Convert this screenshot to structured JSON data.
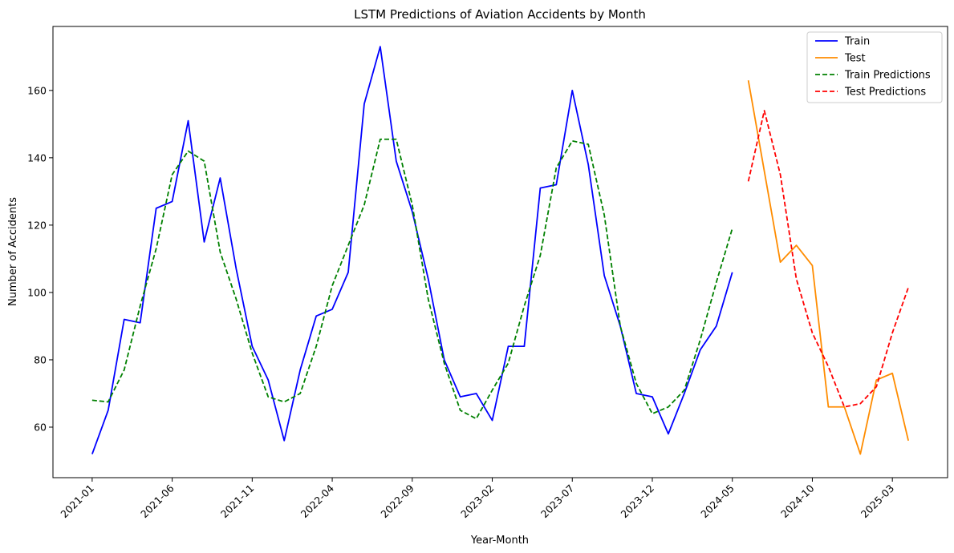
{
  "chart_data": {
    "type": "line",
    "title": "LSTM Predictions of Aviation Accidents by Month",
    "xlabel": "Year-Month",
    "ylabel": "Number of Accidents",
    "x_months": [
      "2021-01",
      "2021-02",
      "2021-03",
      "2021-04",
      "2021-05",
      "2021-06",
      "2021-07",
      "2021-08",
      "2021-09",
      "2021-10",
      "2021-11",
      "2021-12",
      "2022-01",
      "2022-02",
      "2022-03",
      "2022-04",
      "2022-05",
      "2022-06",
      "2022-07",
      "2022-08",
      "2022-09",
      "2022-10",
      "2022-11",
      "2022-12",
      "2023-01",
      "2023-02",
      "2023-03",
      "2023-04",
      "2023-05",
      "2023-06",
      "2023-07",
      "2023-08",
      "2023-09",
      "2023-10",
      "2023-11",
      "2023-12",
      "2024-01",
      "2024-02",
      "2024-03",
      "2024-04",
      "2024-05",
      "2024-06",
      "2024-07",
      "2024-08",
      "2024-09",
      "2024-10",
      "2024-11",
      "2024-12",
      "2025-01",
      "2025-02",
      "2025-03",
      "2025-04"
    ],
    "x_ticks": [
      "2021-01",
      "2021-06",
      "2021-11",
      "2022-04",
      "2022-09",
      "2023-02",
      "2023-07",
      "2023-12",
      "2024-05",
      "2024-10",
      "2025-03"
    ],
    "y_ticks": [
      60,
      80,
      100,
      120,
      140,
      160
    ],
    "ylim": [
      45,
      179
    ],
    "legend_position": "top-right",
    "series": [
      {
        "name": "Train",
        "color": "#0000ff",
        "dash": "solid",
        "x": [
          "2021-01",
          "2021-02",
          "2021-03",
          "2021-04",
          "2021-05",
          "2021-06",
          "2021-07",
          "2021-08",
          "2021-09",
          "2021-10",
          "2021-11",
          "2021-12",
          "2022-01",
          "2022-02",
          "2022-03",
          "2022-04",
          "2022-05",
          "2022-06",
          "2022-07",
          "2022-08",
          "2022-09",
          "2022-10",
          "2022-11",
          "2022-12",
          "2023-01",
          "2023-02",
          "2023-03",
          "2023-04",
          "2023-05",
          "2023-06",
          "2023-07",
          "2023-08",
          "2023-09",
          "2023-10",
          "2023-11",
          "2023-12",
          "2024-01",
          "2024-02",
          "2024-03",
          "2024-04",
          "2024-05"
        ],
        "values": [
          52,
          65,
          92,
          91,
          125,
          127,
          151,
          115,
          134,
          107,
          84,
          74,
          56,
          77,
          93,
          95,
          106,
          156,
          173,
          139,
          124,
          104,
          80,
          69,
          70,
          62,
          84,
          84,
          131,
          132,
          160,
          138,
          105,
          90,
          70,
          69,
          58,
          70,
          83,
          90,
          106
        ]
      },
      {
        "name": "Test",
        "color": "#ff8c00",
        "dash": "solid",
        "x": [
          "2024-06",
          "2024-07",
          "2024-08",
          "2024-09",
          "2024-10",
          "2024-11",
          "2024-12",
          "2025-01",
          "2025-02",
          "2025-03",
          "2025-04"
        ],
        "values": [
          163,
          136,
          109,
          114,
          108,
          66,
          66,
          52,
          74,
          76,
          56
        ]
      },
      {
        "name": "Train Predictions",
        "color": "#008000",
        "dash": "dashed",
        "x": [
          "2021-01",
          "2021-02",
          "2021-03",
          "2021-04",
          "2021-05",
          "2021-06",
          "2021-07",
          "2021-08",
          "2021-09",
          "2021-10",
          "2021-11",
          "2021-12",
          "2022-01",
          "2022-02",
          "2022-03",
          "2022-04",
          "2022-05",
          "2022-06",
          "2022-07",
          "2022-08",
          "2022-09",
          "2022-10",
          "2022-11",
          "2022-12",
          "2023-01",
          "2023-02",
          "2023-03",
          "2023-04",
          "2023-05",
          "2023-06",
          "2023-07",
          "2023-08",
          "2023-09",
          "2023-10",
          "2023-11",
          "2023-12",
          "2024-01",
          "2024-02",
          "2024-03",
          "2024-04",
          "2024-05"
        ],
        "values": [
          68,
          67.5,
          77,
          96,
          113,
          135,
          142,
          139,
          112,
          98,
          82,
          69,
          67.5,
          70,
          84,
          102,
          114,
          126,
          145.5,
          145.5,
          126,
          98,
          79,
          65,
          62.5,
          71,
          79,
          96,
          111,
          137,
          145,
          144,
          123,
          90,
          73,
          64,
          66,
          71,
          86,
          103,
          119
        ]
      },
      {
        "name": "Test Predictions",
        "color": "#ff0000",
        "dash": "dashed",
        "x": [
          "2024-06",
          "2024-07",
          "2024-08",
          "2024-09",
          "2024-10",
          "2024-11",
          "2024-12",
          "2025-01",
          "2025-02",
          "2025-03",
          "2025-04"
        ],
        "values": [
          133,
          154,
          135,
          104,
          88,
          78,
          66,
          67,
          72,
          88,
          101.5
        ]
      }
    ]
  }
}
